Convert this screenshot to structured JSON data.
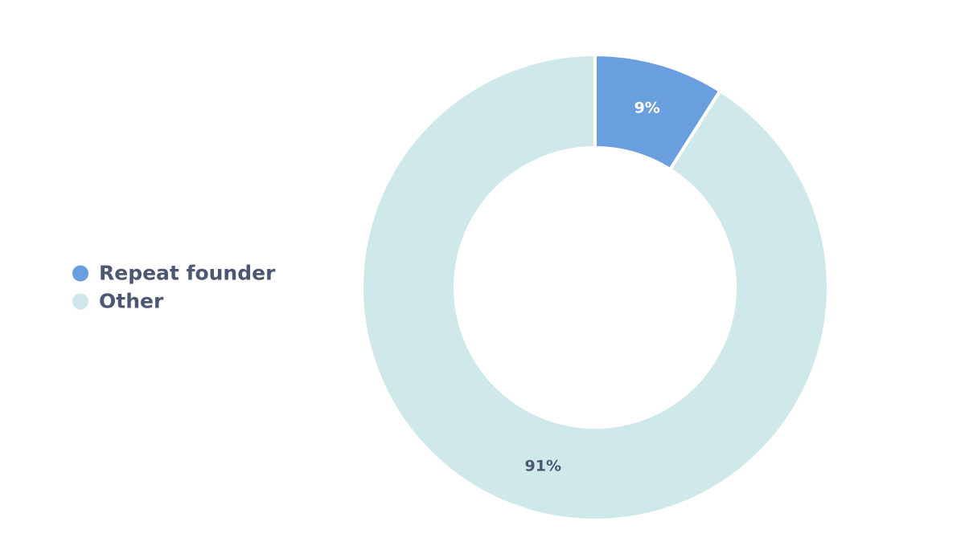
{
  "chart_data": {
    "type": "pie",
    "donut": true,
    "categories": [
      "Repeat founder",
      "Other"
    ],
    "values": [
      9,
      91
    ],
    "value_labels": [
      "9%",
      "91%"
    ],
    "colors": [
      "#6a9fdf",
      "#cfe8e9"
    ],
    "legend": "left"
  }
}
